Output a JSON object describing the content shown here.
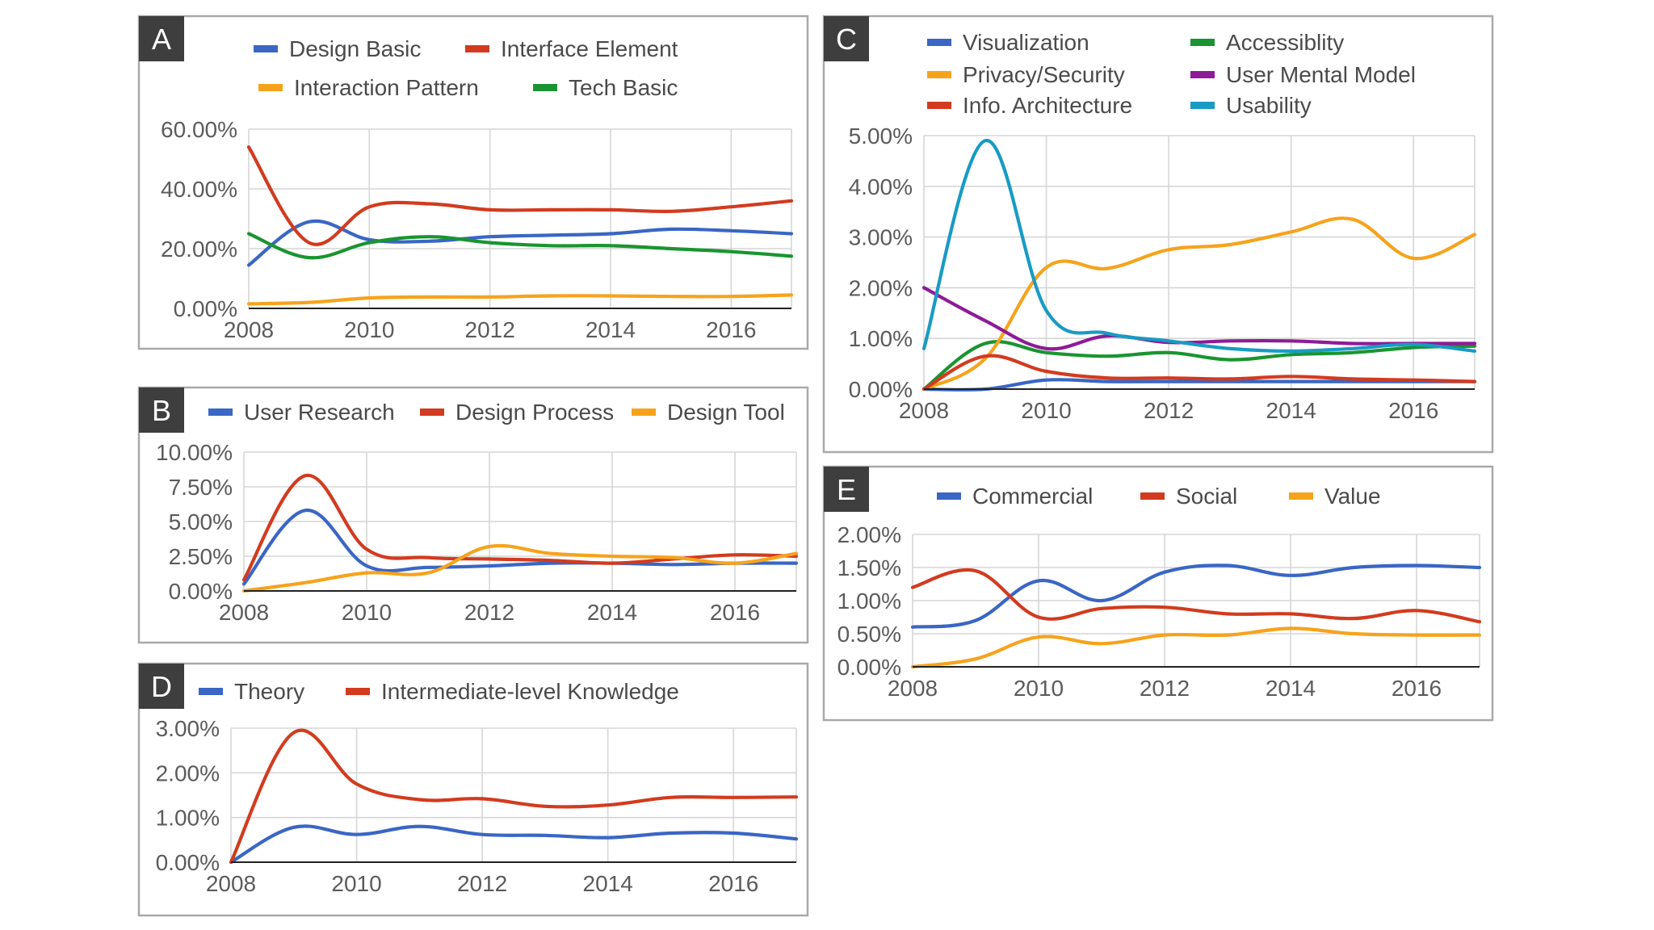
{
  "chart_data": [
    {
      "panel": "A",
      "type": "line",
      "x": [
        2008,
        2009,
        2010,
        2011,
        2012,
        2013,
        2014,
        2015,
        2016,
        2017
      ],
      "x_ticks": [
        2008,
        2010,
        2012,
        2014,
        2016
      ],
      "xlim": [
        2008,
        2017
      ],
      "ylim": [
        0,
        60
      ],
      "y_ticks": [
        0,
        20,
        40,
        60
      ],
      "y_tick_labels": [
        "0.00%",
        "20.00%",
        "40.00%",
        "60.00%"
      ],
      "legend_rows": [
        [
          "Design Basic",
          "Interface Element"
        ],
        [
          "Interaction Pattern",
          "Tech Basic"
        ]
      ],
      "series": [
        {
          "name": "Design Basic",
          "color": "#3a66c4",
          "values": [
            14.5,
            29,
            23,
            22.5,
            24,
            24.5,
            25,
            26.5,
            26,
            25
          ]
        },
        {
          "name": "Interface Element",
          "color": "#d23b1f",
          "values": [
            54,
            22,
            34,
            35,
            33,
            33,
            33,
            32.5,
            34,
            36
          ]
        },
        {
          "name": "Interaction Pattern",
          "color": "#f6a31c",
          "values": [
            1.5,
            2,
            3.5,
            3.8,
            3.8,
            4.2,
            4.2,
            4,
            4,
            4.5
          ]
        },
        {
          "name": "Tech Basic",
          "color": "#1a9430",
          "values": [
            25,
            17,
            22,
            24,
            22,
            21,
            21,
            20,
            19,
            17.5
          ]
        }
      ]
    },
    {
      "panel": "B",
      "type": "line",
      "x": [
        2008,
        2009,
        2010,
        2011,
        2012,
        2013,
        2014,
        2015,
        2016,
        2017
      ],
      "x_ticks": [
        2008,
        2010,
        2012,
        2014,
        2016
      ],
      "xlim": [
        2008,
        2017
      ],
      "ylim": [
        0,
        10
      ],
      "y_ticks": [
        0,
        2.5,
        5,
        7.5,
        10
      ],
      "y_tick_labels": [
        "0.00%",
        "2.50%",
        "5.00%",
        "7.50%",
        "10.00%"
      ],
      "legend_rows": [
        [
          "User Research",
          "Design Process",
          "Design Tool"
        ]
      ],
      "series": [
        {
          "name": "User Research",
          "color": "#3a66c4",
          "values": [
            0.5,
            5.8,
            1.8,
            1.7,
            1.8,
            2.0,
            2.0,
            1.9,
            2.0,
            2.0
          ]
        },
        {
          "name": "Design Process",
          "color": "#d23b1f",
          "values": [
            0.8,
            8.3,
            3.0,
            2.4,
            2.3,
            2.2,
            2.0,
            2.3,
            2.6,
            2.5
          ]
        },
        {
          "name": "Design Tool",
          "color": "#f6a31c",
          "values": [
            0,
            0.6,
            1.3,
            1.3,
            3.2,
            2.7,
            2.5,
            2.4,
            2.0,
            2.7
          ]
        }
      ]
    },
    {
      "panel": "D",
      "type": "line",
      "x": [
        2008,
        2009,
        2010,
        2011,
        2012,
        2013,
        2014,
        2015,
        2016,
        2017
      ],
      "x_ticks": [
        2008,
        2010,
        2012,
        2014,
        2016
      ],
      "xlim": [
        2008,
        2017
      ],
      "ylim": [
        0,
        3
      ],
      "y_ticks": [
        0,
        1,
        2,
        3
      ],
      "y_tick_labels": [
        "0.00%",
        "1.00%",
        "2.00%",
        "3.00%"
      ],
      "legend_rows": [
        [
          "Theory",
          "Intermediate-level Knowledge"
        ]
      ],
      "series": [
        {
          "name": "Theory",
          "color": "#3a66c4",
          "values": [
            0,
            0.78,
            0.62,
            0.8,
            0.62,
            0.6,
            0.55,
            0.65,
            0.65,
            0.52
          ]
        },
        {
          "name": "Intermediate-level Knowledge",
          "color": "#d23b1f",
          "values": [
            0,
            2.9,
            1.75,
            1.4,
            1.42,
            1.25,
            1.28,
            1.45,
            1.45,
            1.46
          ]
        }
      ]
    },
    {
      "panel": "C",
      "type": "line",
      "x": [
        2008,
        2009,
        2010,
        2011,
        2012,
        2013,
        2014,
        2015,
        2016,
        2017
      ],
      "x_ticks": [
        2008,
        2010,
        2012,
        2014,
        2016
      ],
      "xlim": [
        2008,
        2017
      ],
      "ylim": [
        0,
        5
      ],
      "y_ticks": [
        0,
        1,
        2,
        3,
        4,
        5
      ],
      "y_tick_labels": [
        "0.00%",
        "1.00%",
        "2.00%",
        "3.00%",
        "4.00%",
        "5.00%"
      ],
      "legend_rows": [
        [
          "Visualization",
          "Accessiblity"
        ],
        [
          "Privacy/Security",
          "User Mental Model"
        ],
        [
          "Info. Architecture",
          "Usability"
        ]
      ],
      "series": [
        {
          "name": "Visualization",
          "color": "#3a66c4",
          "values": [
            0,
            0,
            0.18,
            0.15,
            0.15,
            0.15,
            0.15,
            0.15,
            0.15,
            0.15
          ]
        },
        {
          "name": "Accessiblity",
          "color": "#1a9430",
          "values": [
            0,
            0.9,
            0.72,
            0.65,
            0.72,
            0.58,
            0.68,
            0.72,
            0.82,
            0.85
          ]
        },
        {
          "name": "Privacy/Security",
          "color": "#f6a31c",
          "values": [
            0,
            0.6,
            2.4,
            2.38,
            2.75,
            2.85,
            3.1,
            3.35,
            2.58,
            3.05
          ]
        },
        {
          "name": "User Mental Model",
          "color": "#8e1b97",
          "values": [
            2.0,
            1.35,
            0.8,
            1.05,
            0.92,
            0.95,
            0.95,
            0.9,
            0.9,
            0.9
          ]
        },
        {
          "name": "Info. Architecture",
          "color": "#d23b1f",
          "values": [
            0,
            0.65,
            0.35,
            0.22,
            0.22,
            0.2,
            0.25,
            0.2,
            0.18,
            0.15
          ]
        },
        {
          "name": "Usability",
          "color": "#189bc4",
          "values": [
            0.8,
            4.9,
            1.55,
            1.1,
            0.95,
            0.8,
            0.75,
            0.8,
            0.88,
            0.75
          ]
        }
      ]
    },
    {
      "panel": "E",
      "type": "line",
      "x": [
        2008,
        2009,
        2010,
        2011,
        2012,
        2013,
        2014,
        2015,
        2016,
        2017
      ],
      "x_ticks": [
        2008,
        2010,
        2012,
        2014,
        2016
      ],
      "xlim": [
        2008,
        2017
      ],
      "ylim": [
        0,
        2
      ],
      "y_ticks": [
        0,
        0.5,
        1,
        1.5,
        2
      ],
      "y_tick_labels": [
        "0.00%",
        "0.50%",
        "1.00%",
        "1.50%",
        "2.00%"
      ],
      "legend_rows": [
        [
          "Commercial",
          "Social",
          "Value"
        ]
      ],
      "series": [
        {
          "name": "Commercial",
          "color": "#3a66c4",
          "values": [
            0.6,
            0.7,
            1.3,
            1.0,
            1.43,
            1.53,
            1.38,
            1.5,
            1.53,
            1.5
          ]
        },
        {
          "name": "Social",
          "color": "#d23b1f",
          "values": [
            1.2,
            1.45,
            0.75,
            0.88,
            0.9,
            0.8,
            0.8,
            0.73,
            0.85,
            0.68
          ]
        },
        {
          "name": "Value",
          "color": "#f6a31c",
          "values": [
            0,
            0.12,
            0.45,
            0.35,
            0.48,
            0.48,
            0.58,
            0.5,
            0.48,
            0.48
          ]
        }
      ]
    }
  ]
}
